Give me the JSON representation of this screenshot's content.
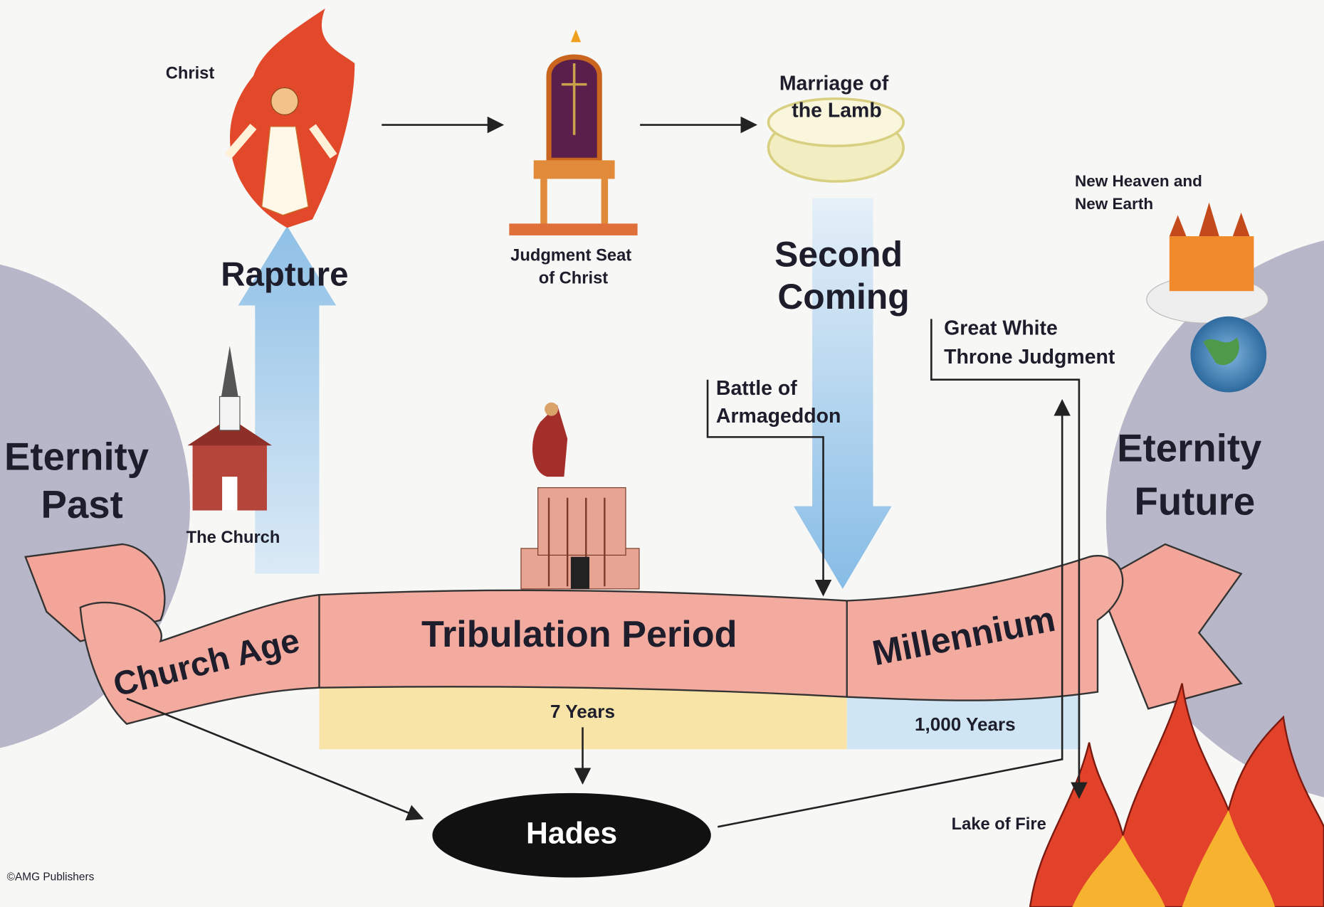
{
  "christ": {
    "label": "Christ"
  },
  "rapture": {
    "label": "Rapture"
  },
  "church": {
    "label": "The Church"
  },
  "judgment_seat": {
    "lines": [
      "Judgment Seat",
      "of Christ"
    ]
  },
  "marriage": {
    "lines": [
      "Marriage of",
      "the Lamb"
    ]
  },
  "second_coming": {
    "lines": [
      "Second",
      "Coming"
    ]
  },
  "new_heaven": {
    "lines": [
      "New Heaven and",
      "New Earth"
    ]
  },
  "great_white_throne": {
    "lines": [
      "Great White",
      "Throne Judgment"
    ]
  },
  "armageddon": {
    "lines": [
      "Battle of",
      "Armageddon"
    ]
  },
  "eternity_past": {
    "lines": [
      "Eternity",
      "Past"
    ]
  },
  "eternity_future": {
    "lines": [
      "Eternity",
      "Future"
    ]
  },
  "timeline": {
    "segments": [
      "Church Age",
      "Tribulation Period",
      "Millennium"
    ],
    "durations": [
      "7 Years",
      "1,000 Years"
    ]
  },
  "hades": {
    "label": "Hades"
  },
  "lake_of_fire": {
    "label": "Lake of Fire"
  },
  "copyright": "©AMG Publishers"
}
